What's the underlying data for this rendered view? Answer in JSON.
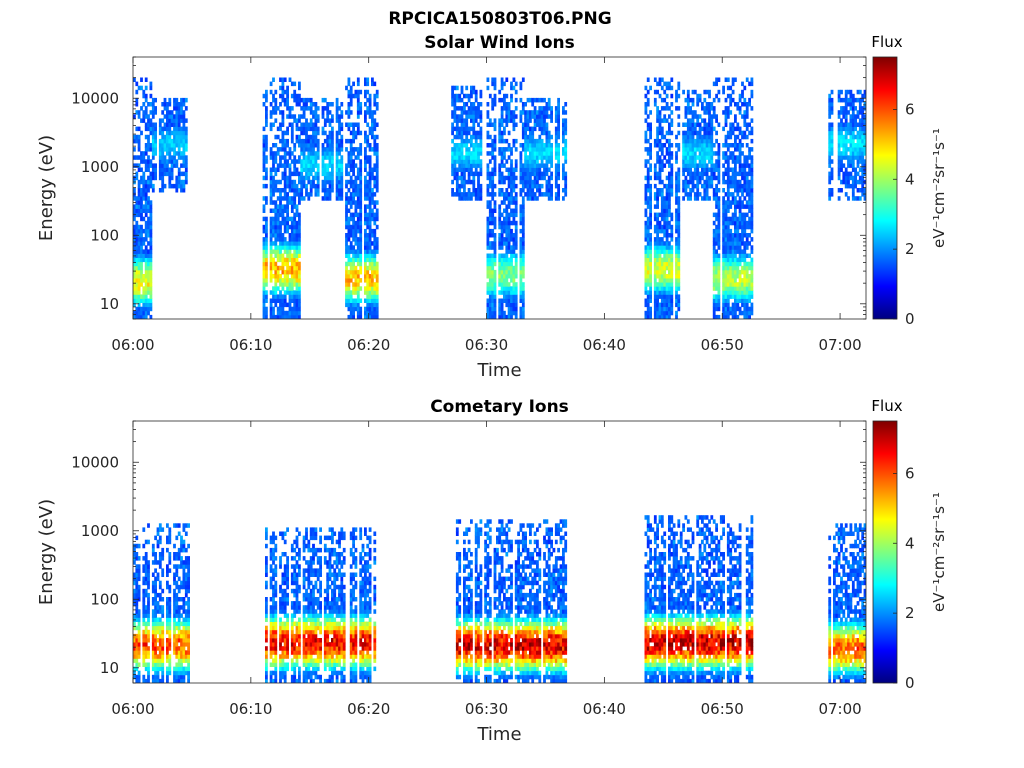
{
  "figure_title": "RPCICA150803T06.PNG",
  "colormap": [
    "#00007f",
    "#0000ff",
    "#007fff",
    "#00ffff",
    "#7fff7f",
    "#ffff00",
    "#ff7f00",
    "#ff0000",
    "#7f0000"
  ],
  "chart_data": [
    {
      "type": "heatmap",
      "title": "Solar Wind Ions",
      "xlabel": "Time",
      "ylabel": "Energy (eV)",
      "x_ticks": [
        "06:00",
        "06:10",
        "06:20",
        "06:30",
        "06:40",
        "06:50",
        "07:00"
      ],
      "x_tick_minutes": [
        0,
        10,
        20,
        30,
        40,
        50,
        60
      ],
      "xlim_minutes": [
        0,
        62.2
      ],
      "y_scale": "log",
      "y_ticks": [
        "10",
        "100",
        "1000",
        "10000"
      ],
      "y_tick_values": [
        10,
        100,
        1000,
        10000
      ],
      "ylim": [
        6,
        40000
      ],
      "colorbar": {
        "title": "Flux",
        "label": "eV⁻¹cm⁻²sr⁻¹s⁻¹",
        "range": [
          0,
          7.5
        ],
        "ticks": [
          "0",
          "2",
          "4",
          "6"
        ],
        "tick_values": [
          0,
          2,
          4,
          6
        ]
      },
      "bursts": [
        {
          "start_min": 0.0,
          "end_min": 1.6,
          "emin": 6,
          "emax": 18000,
          "peak_e": 20,
          "peak": 4.8
        },
        {
          "start_min": 1.6,
          "end_min": 4.6,
          "emin": 400,
          "emax": 9000,
          "peak_e": 2000,
          "peak": 2.5
        },
        {
          "start_min": 11.0,
          "end_min": 14.2,
          "emin": 6,
          "emax": 20000,
          "peak_e": 30,
          "peak": 5.4
        },
        {
          "start_min": 14.2,
          "end_min": 17.8,
          "emin": 300,
          "emax": 10000,
          "peak_e": 1000,
          "peak": 2.6
        },
        {
          "start_min": 17.8,
          "end_min": 20.8,
          "emin": 6,
          "emax": 20000,
          "peak_e": 22,
          "peak": 5.2
        },
        {
          "start_min": 27.0,
          "end_min": 29.6,
          "emin": 300,
          "emax": 15000,
          "peak_e": 1500,
          "peak": 2.6
        },
        {
          "start_min": 30.0,
          "end_min": 33.2,
          "emin": 6,
          "emax": 18000,
          "peak_e": 25,
          "peak": 3.9
        },
        {
          "start_min": 33.2,
          "end_min": 36.8,
          "emin": 300,
          "emax": 10000,
          "peak_e": 1500,
          "peak": 2.6
        },
        {
          "start_min": 43.4,
          "end_min": 46.4,
          "emin": 6,
          "emax": 20000,
          "peak_e": 30,
          "peak": 4.6
        },
        {
          "start_min": 46.4,
          "end_min": 49.2,
          "emin": 300,
          "emax": 12000,
          "peak_e": 1500,
          "peak": 2.6
        },
        {
          "start_min": 49.2,
          "end_min": 52.6,
          "emin": 6,
          "emax": 20000,
          "peak_e": 22,
          "peak": 4.3
        },
        {
          "start_min": 59.0,
          "end_min": 62.2,
          "emin": 300,
          "emax": 12000,
          "peak_e": 2000,
          "peak": 2.7
        }
      ]
    },
    {
      "type": "heatmap",
      "title": "Cometary Ions",
      "xlabel": "Time",
      "ylabel": "Energy (eV)",
      "x_ticks": [
        "06:00",
        "06:10",
        "06:20",
        "06:30",
        "06:40",
        "06:50",
        "07:00"
      ],
      "x_tick_minutes": [
        0,
        10,
        20,
        30,
        40,
        50,
        60
      ],
      "xlim_minutes": [
        0,
        62.2
      ],
      "y_scale": "log",
      "y_ticks": [
        "10",
        "100",
        "1000",
        "10000"
      ],
      "y_tick_values": [
        10,
        100,
        1000,
        10000
      ],
      "ylim": [
        6,
        40000
      ],
      "colorbar": {
        "title": "Flux",
        "label": "eV⁻¹cm⁻²sr⁻¹s⁻¹",
        "range": [
          0,
          7.5
        ],
        "ticks": [
          "0",
          "2",
          "4",
          "6"
        ],
        "tick_values": [
          0,
          2,
          4,
          6
        ]
      },
      "bursts": [
        {
          "start_min": 0.0,
          "end_min": 4.8,
          "emin": 6,
          "emax": 1200,
          "peak_e": 20,
          "peak": 6.2
        },
        {
          "start_min": 11.2,
          "end_min": 20.6,
          "emin": 6,
          "emax": 1000,
          "peak_e": 22,
          "peak": 6.8
        },
        {
          "start_min": 27.4,
          "end_min": 36.8,
          "emin": 6,
          "emax": 1300,
          "peak_e": 20,
          "peak": 7.0
        },
        {
          "start_min": 43.4,
          "end_min": 52.6,
          "emin": 6,
          "emax": 1500,
          "peak_e": 22,
          "peak": 7.1
        },
        {
          "start_min": 59.0,
          "end_min": 62.2,
          "emin": 6,
          "emax": 1200,
          "peak_e": 18,
          "peak": 6.0
        }
      ]
    }
  ]
}
